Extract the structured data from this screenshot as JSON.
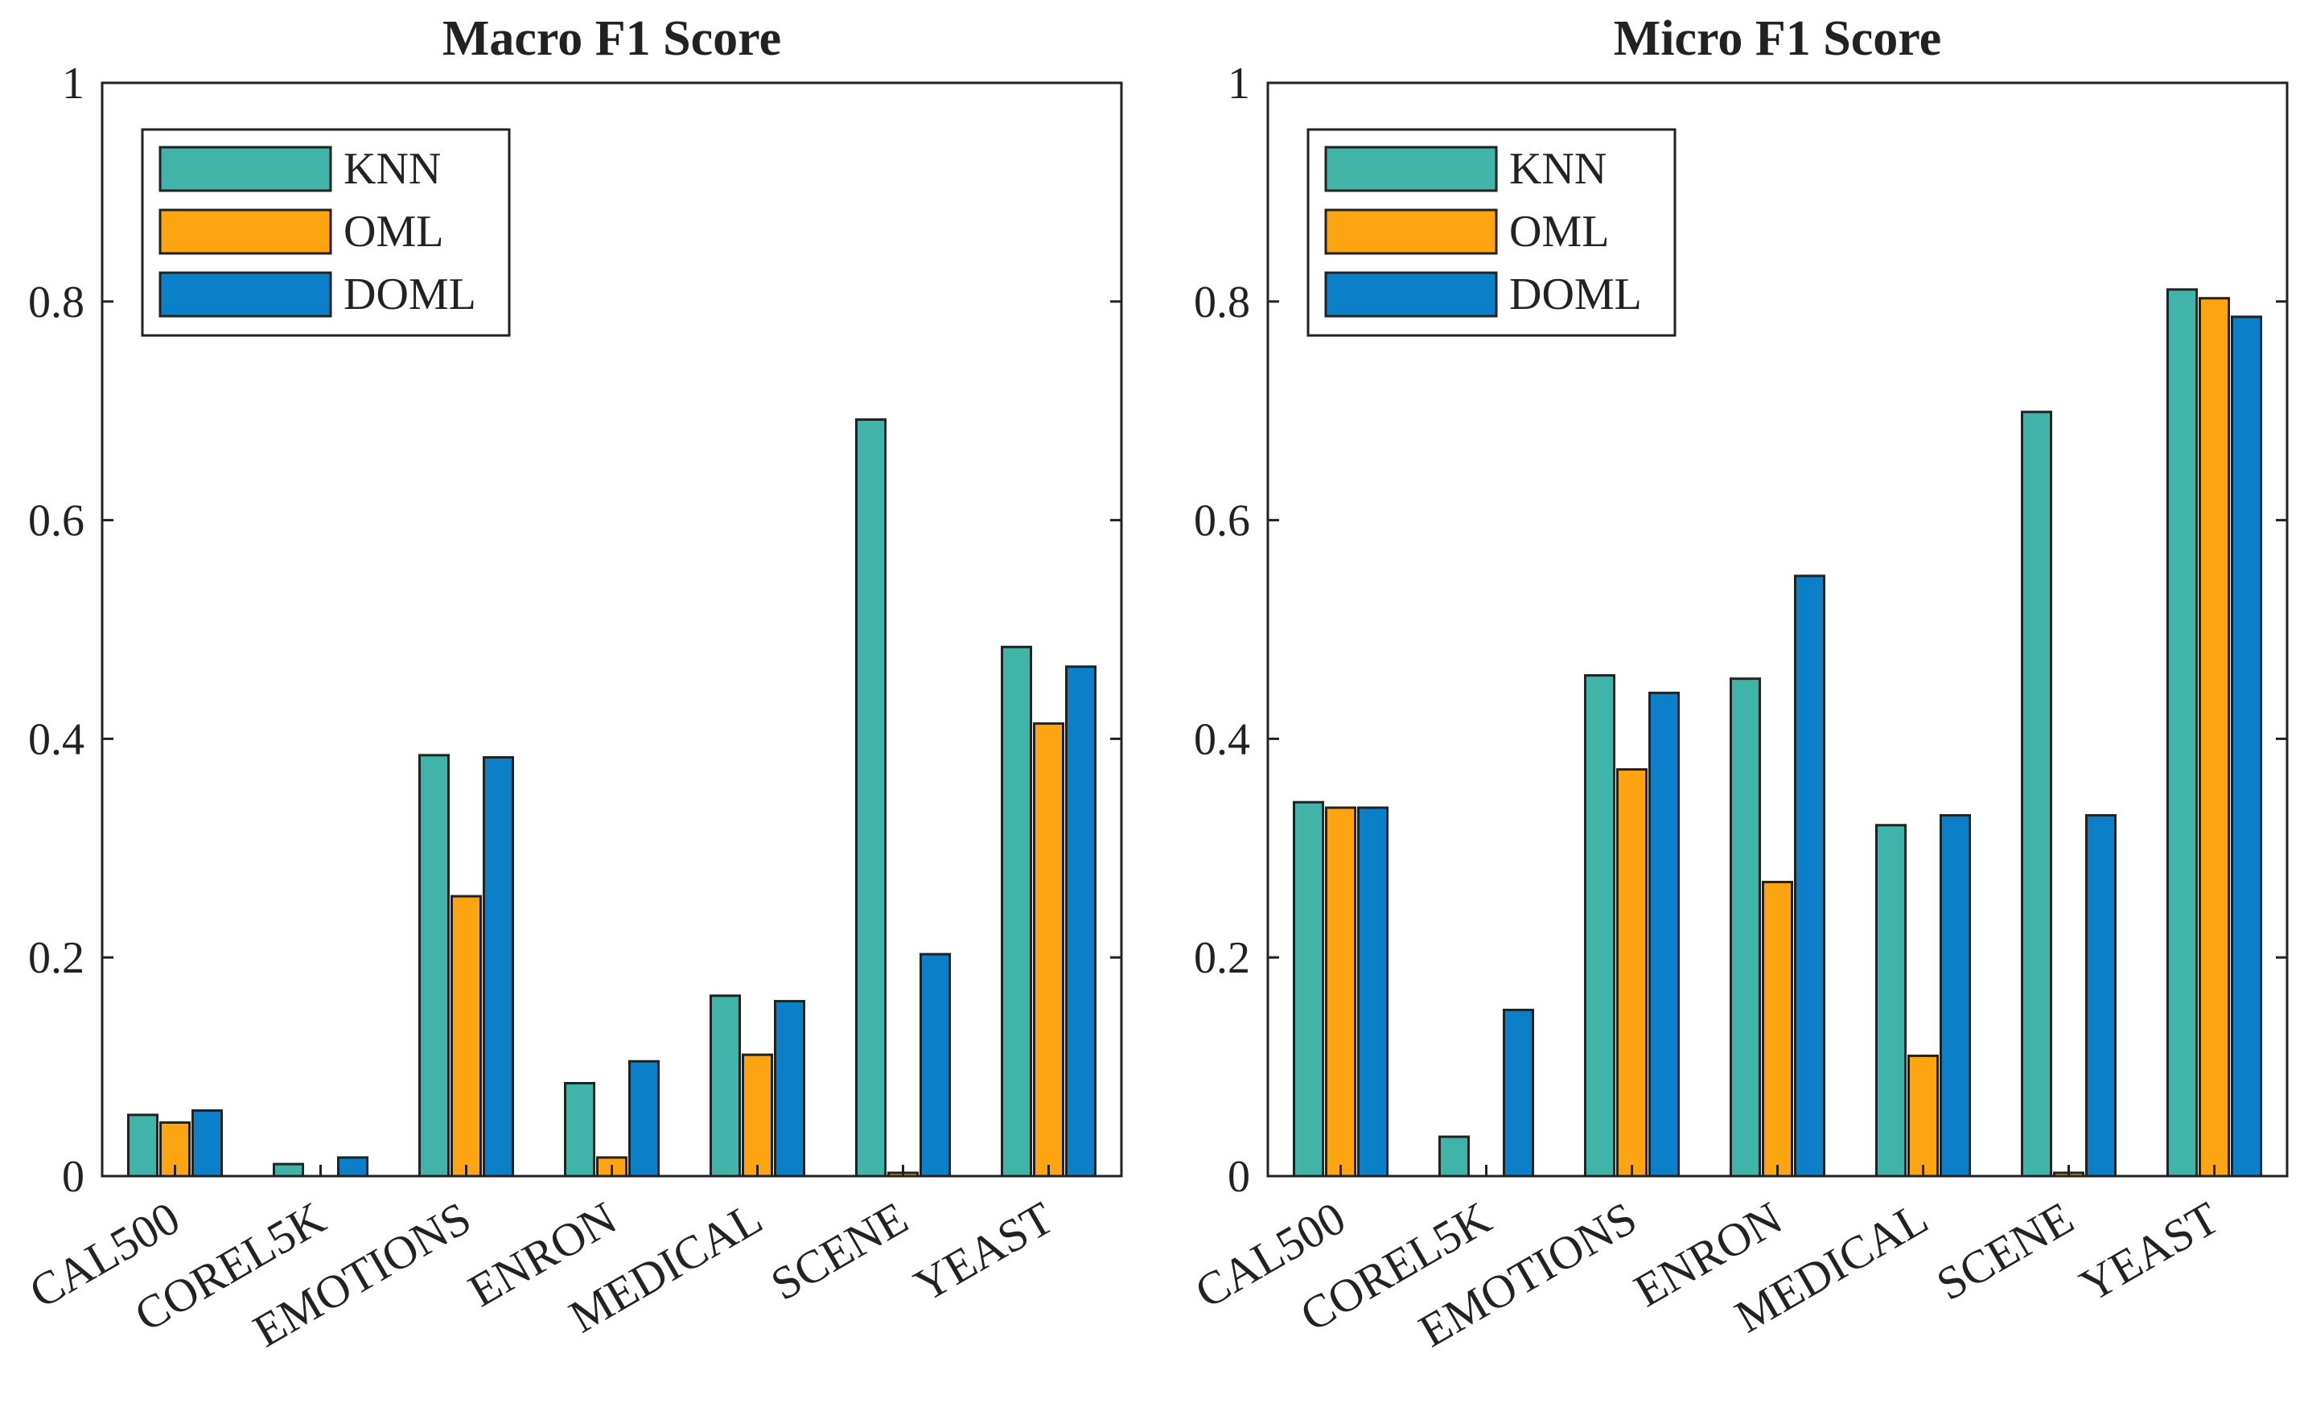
{
  "colors": {
    "knn": "#40b4a8",
    "oml": "#fca412",
    "doml": "#0b80c8",
    "axis": "#222222",
    "background": "#ffffff"
  },
  "chart_data": [
    {
      "type": "bar",
      "title": "Macro F1 Score",
      "xlabel": "",
      "ylabel": "",
      "ylim": [
        0,
        1
      ],
      "yticks": [
        0,
        0.2,
        0.4,
        0.6,
        0.8,
        1
      ],
      "ytick_labels": [
        "0",
        "0.2",
        "0.4",
        "0.6",
        "0.8",
        "1"
      ],
      "grid": false,
      "legend_position": "top-left",
      "categories": [
        "CAL500",
        "COREL5K",
        "EMOTIONS",
        "ENRON",
        "MEDICAL",
        "SCENE",
        "YEAST"
      ],
      "series": [
        {
          "name": "KNN",
          "color_key": "knn",
          "values": [
            0.056,
            0.011,
            0.385,
            0.085,
            0.165,
            0.692,
            0.484
          ]
        },
        {
          "name": "OML",
          "color_key": "oml",
          "values": [
            0.049,
            0.0,
            0.256,
            0.017,
            0.111,
            0.003,
            0.414
          ]
        },
        {
          "name": "DOML",
          "color_key": "doml",
          "values": [
            0.06,
            0.017,
            0.383,
            0.105,
            0.16,
            0.203,
            0.466
          ]
        }
      ]
    },
    {
      "type": "bar",
      "title": "Micro F1 Score",
      "xlabel": "",
      "ylabel": "",
      "ylim": [
        0,
        1
      ],
      "yticks": [
        0,
        0.2,
        0.4,
        0.6,
        0.8,
        1
      ],
      "ytick_labels": [
        "0",
        "0.2",
        "0.4",
        "0.6",
        "0.8",
        "1"
      ],
      "grid": false,
      "legend_position": "top-left",
      "categories": [
        "CAL500",
        "COREL5K",
        "EMOTIONS",
        "ENRON",
        "MEDICAL",
        "SCENE",
        "YEAST"
      ],
      "series": [
        {
          "name": "KNN",
          "color_key": "knn",
          "values": [
            0.342,
            0.036,
            0.458,
            0.455,
            0.321,
            0.699,
            0.811
          ]
        },
        {
          "name": "OML",
          "color_key": "oml",
          "values": [
            0.337,
            0.0,
            0.372,
            0.269,
            0.11,
            0.003,
            0.803
          ]
        },
        {
          "name": "DOML",
          "color_key": "doml",
          "values": [
            0.337,
            0.152,
            0.442,
            0.549,
            0.33,
            0.33,
            0.786
          ]
        }
      ]
    }
  ]
}
